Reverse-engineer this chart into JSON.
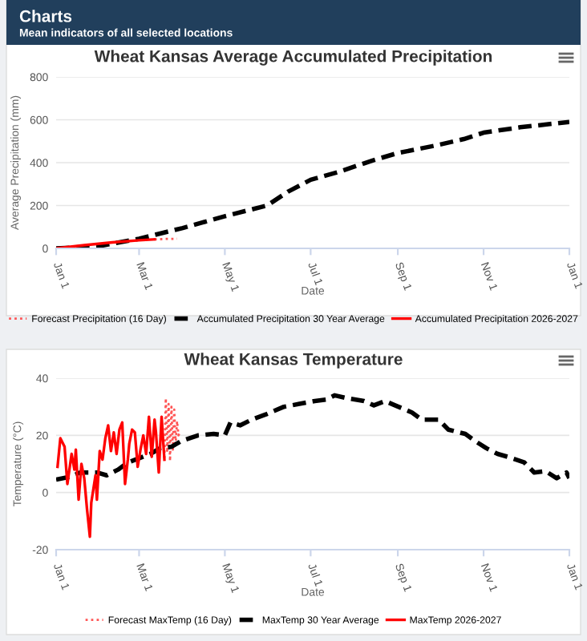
{
  "chart_data": [
    {
      "type": "line",
      "title": "Wheat Kansas Average Accumulated Precipitation",
      "xlabel": "Date",
      "ylabel": "Average Precipitation (mm)",
      "annotations": [
        "Charts",
        "Mean indicators of all selected locations"
      ],
      "xlim": [
        "2026-01-01",
        "2027-01-01"
      ],
      "xticks": [
        {
          "value": "2026-01-01",
          "label": "Jan 1"
        },
        {
          "value": "2026-03-01",
          "label": "Mar 1"
        },
        {
          "value": "2026-05-01",
          "label": "May 1"
        },
        {
          "value": "2026-07-01",
          "label": "Jul 1"
        },
        {
          "value": "2026-09-01",
          "label": "Sep 1"
        },
        {
          "value": "2026-11-01",
          "label": "Nov 1"
        },
        {
          "value": "2027-01-01",
          "label": "Jan 1"
        }
      ],
      "ylim": [
        0,
        800
      ],
      "yticks": [
        0,
        200,
        400,
        600,
        800
      ],
      "grid": "y",
      "legend": "bottom",
      "marker": "none",
      "series": [
        {
          "name": "Forecast Precipitation (16 Day)",
          "color": "#ff5555",
          "line_style": "dotted",
          "x": [
            "2026-03-12",
            "2026-03-20",
            "2026-03-28"
          ],
          "values": [
            42,
            44,
            45
          ]
        },
        {
          "name": "Accumulated Precipitation 30 Year Average",
          "color": "#000000",
          "line_style": "dashed",
          "x": [
            "2026-01-01",
            "2026-01-31",
            "2026-03-01",
            "2026-04-01",
            "2026-05-01",
            "2026-05-31",
            "2026-06-15",
            "2026-07-01",
            "2026-07-20",
            "2026-08-14",
            "2026-09-01",
            "2026-09-28",
            "2026-10-18",
            "2026-11-01",
            "2026-11-27",
            "2027-01-01"
          ],
          "values": [
            0,
            10,
            45,
            95,
            150,
            200,
            265,
            320,
            355,
            410,
            445,
            480,
            510,
            540,
            565,
            590
          ]
        },
        {
          "name": "Accumulated Precipitation 2026-2027",
          "color": "#ff0000",
          "line_style": "solid",
          "x": [
            "2026-01-01",
            "2026-01-21",
            "2026-02-10",
            "2026-03-01",
            "2026-03-12"
          ],
          "values": [
            0,
            15,
            28,
            38,
            42
          ]
        }
      ]
    },
    {
      "type": "line",
      "title": "Wheat Kansas Temperature",
      "xlabel": "Date",
      "ylabel": "Temperature (°C)",
      "xlim": [
        "2026-01-01",
        "2027-01-01"
      ],
      "xticks": [
        {
          "value": "2026-01-01",
          "label": "Jan 1"
        },
        {
          "value": "2026-03-01",
          "label": "Mar 1"
        },
        {
          "value": "2026-05-01",
          "label": "May 1"
        },
        {
          "value": "2026-07-01",
          "label": "Jul 1"
        },
        {
          "value": "2026-09-01",
          "label": "Sep 1"
        },
        {
          "value": "2026-11-01",
          "label": "Nov 1"
        },
        {
          "value": "2027-01-01",
          "label": "Jan 1"
        }
      ],
      "ylim": [
        -20,
        40
      ],
      "yticks": [
        -20,
        0,
        20,
        40
      ],
      "grid": "y",
      "legend": "bottom",
      "marker": "none",
      "series": [
        {
          "name": "Forecast MaxTemp (16 Day)",
          "color": "#ff5555",
          "line_style": "dotted",
          "x": [
            "2026-03-19",
            "2026-03-20",
            "2026-03-21",
            "2026-03-22",
            "2026-03-23",
            "2026-03-24",
            "2026-03-25",
            "2026-03-26",
            "2026-03-27",
            "2026-03-28",
            "2026-03-29",
            "2026-03-30"
          ],
          "values": [
            12,
            33,
            14,
            31,
            11,
            30,
            15,
            29,
            17,
            25,
            20,
            21
          ]
        },
        {
          "name": "MaxTemp 30 Year Average",
          "color": "#000000",
          "line_style": "dashed",
          "x": [
            "2026-01-01",
            "2026-01-11",
            "2026-01-18",
            "2026-01-30",
            "2026-02-06",
            "2026-02-14",
            "2026-02-21",
            "2026-03-01",
            "2026-03-09",
            "2026-03-16",
            "2026-03-24",
            "2026-03-31",
            "2026-04-12",
            "2026-04-23",
            "2026-05-01",
            "2026-05-05",
            "2026-05-12",
            "2026-05-20",
            "2026-05-31",
            "2026-06-12",
            "2026-06-23",
            "2026-07-04",
            "2026-07-12",
            "2026-07-18",
            "2026-07-27",
            "2026-08-08",
            "2026-08-15",
            "2026-08-23",
            "2026-08-30",
            "2026-09-11",
            "2026-09-18",
            "2026-09-30",
            "2026-10-07",
            "2026-10-19",
            "2026-10-26",
            "2026-11-03",
            "2026-11-11",
            "2026-11-18",
            "2026-11-30",
            "2026-12-07",
            "2026-12-15",
            "2026-12-23",
            "2026-12-30",
            "2027-01-01"
          ],
          "values": [
            4.5,
            5.5,
            7,
            7,
            6,
            8,
            10.5,
            12,
            13.5,
            15.5,
            16,
            18,
            20,
            20.5,
            20,
            24.5,
            23.5,
            25.5,
            27.5,
            30,
            31,
            32,
            32.5,
            34,
            33,
            32,
            30.5,
            32,
            30.5,
            28,
            25.5,
            25.5,
            22,
            20.5,
            18,
            15.5,
            13.5,
            12.5,
            10.5,
            7,
            7.5,
            5,
            7,
            5
          ]
        },
        {
          "name": "MaxTemp 2026-2027",
          "color": "#ff0000",
          "line_style": "solid",
          "x": [
            "2026-01-02",
            "2026-01-04",
            "2026-01-07",
            "2026-01-09",
            "2026-01-12",
            "2026-01-14",
            "2026-01-15",
            "2026-01-17",
            "2026-01-19",
            "2026-01-21",
            "2026-01-23",
            "2026-01-25",
            "2026-01-26",
            "2026-01-29",
            "2026-01-30",
            "2026-02-01",
            "2026-02-03",
            "2026-02-05",
            "2026-02-07",
            "2026-02-09",
            "2026-02-11",
            "2026-02-13",
            "2026-02-15",
            "2026-02-17",
            "2026-02-19",
            "2026-02-21",
            "2026-02-22",
            "2026-02-24",
            "2026-02-26",
            "2026-02-28",
            "2026-03-02",
            "2026-03-04",
            "2026-03-06",
            "2026-03-08",
            "2026-03-10",
            "2026-03-12",
            "2026-03-13",
            "2026-03-15",
            "2026-03-17",
            "2026-03-19"
          ],
          "values": [
            9,
            19,
            16,
            3,
            13.5,
            8,
            15,
            -2.5,
            10,
            5,
            -6,
            -15.5,
            -3.5,
            6,
            -2.5,
            14.5,
            11.5,
            19,
            23.5,
            14.5,
            21,
            13.5,
            22,
            24.5,
            3,
            11.5,
            17,
            22,
            21,
            9,
            15,
            20,
            13.5,
            26.5,
            12.5,
            25.5,
            21,
            7,
            26.5,
            11.5
          ]
        }
      ]
    }
  ]
}
